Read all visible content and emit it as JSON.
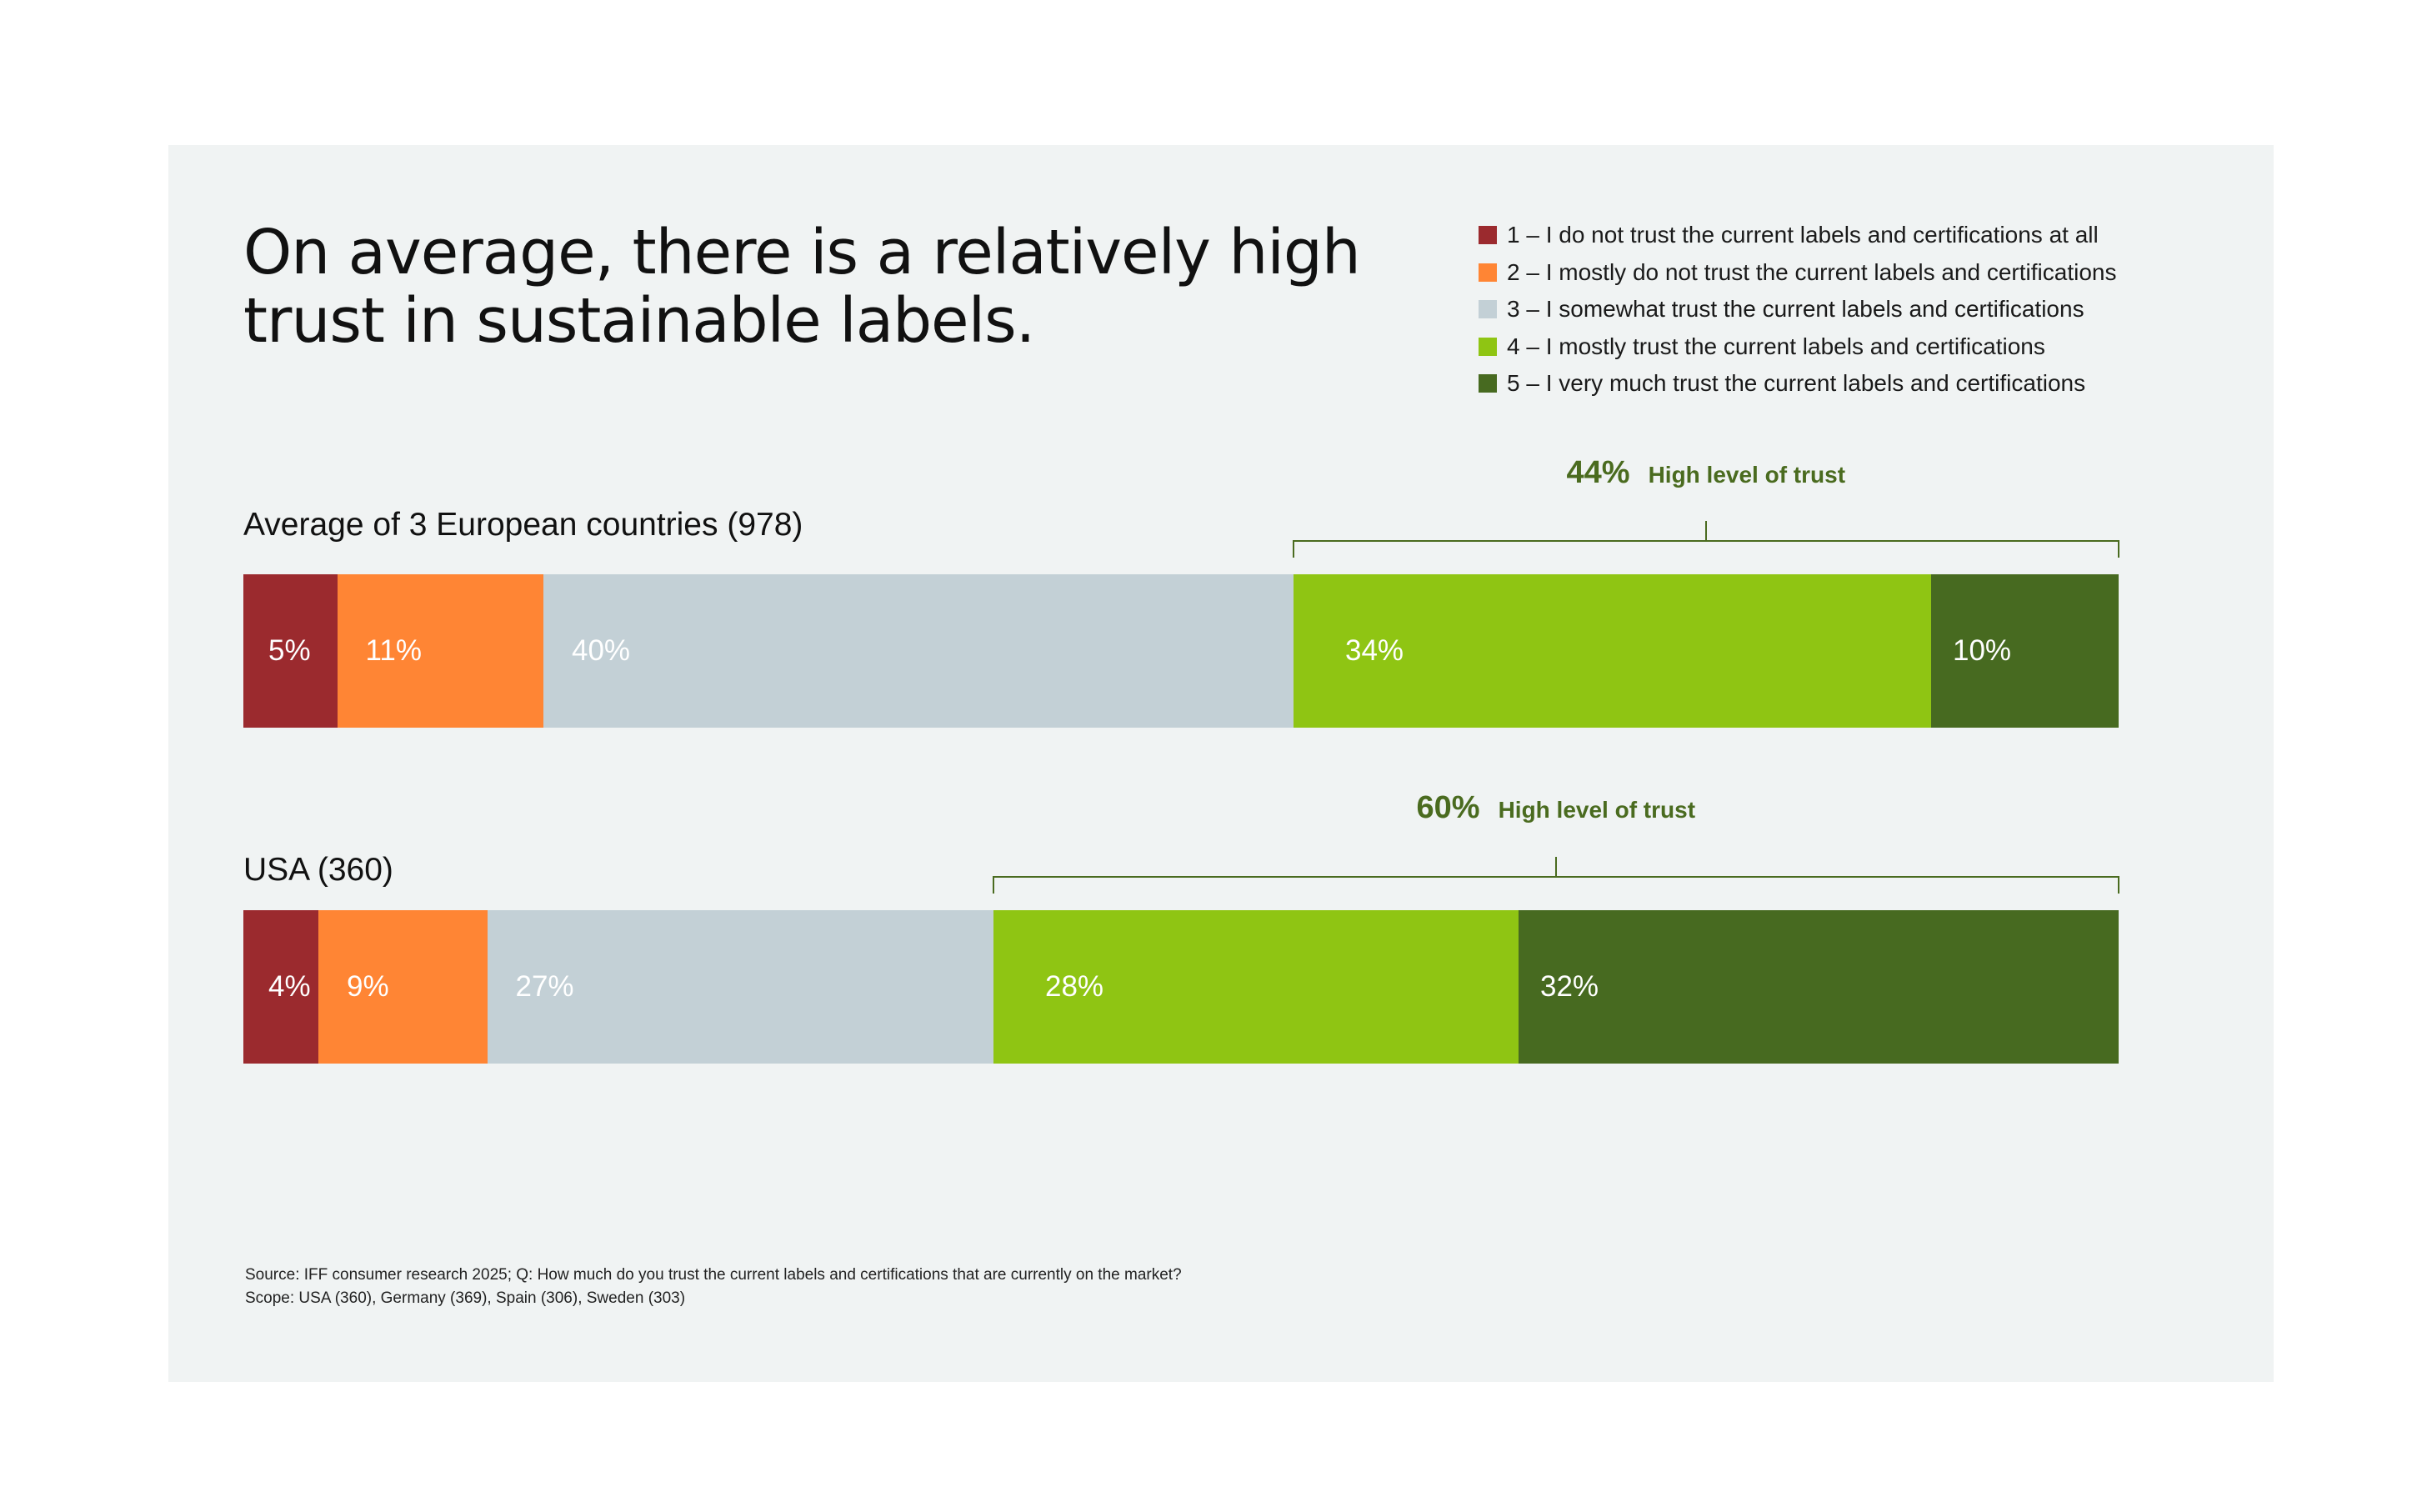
{
  "chart_data": {
    "type": "bar",
    "orientation": "horizontal",
    "stacked": true,
    "title": "On average, there is a relatively high trust in sustainable labels.",
    "categories": [
      "Average of 3 European countries (978)",
      "USA (360)"
    ],
    "series": [
      {
        "name": "1 – I do not trust the current labels and certifications at all",
        "color": "#9b2a2e",
        "values": [
          5,
          4
        ],
        "labels": [
          "5%",
          "4%"
        ]
      },
      {
        "name": "2 – I mostly do not trust the current labels and certifications",
        "color": "#ff8534",
        "values": [
          11,
          9
        ],
        "labels": [
          "11%",
          "9%"
        ]
      },
      {
        "name": "3 – I somewhat trust the current labels and certifications",
        "color": "#c3d0d6",
        "values": [
          40,
          27
        ],
        "labels": [
          "40%",
          "27%"
        ]
      },
      {
        "name": "4 – I mostly trust the current labels and certifications",
        "color": "#8fc513",
        "values": [
          34,
          28
        ],
        "labels": [
          "34%",
          "28%"
        ]
      },
      {
        "name": "5 – I very much trust the current labels and certifications",
        "color": "#476a20",
        "values": [
          10,
          32
        ],
        "labels": [
          "10%",
          "32%"
        ]
      }
    ],
    "annotations": [
      {
        "group": 0,
        "value": "44%",
        "text": "High level of trust"
      },
      {
        "group": 1,
        "value": "60%",
        "text": "High level of trust"
      }
    ],
    "legend": "top-right"
  },
  "source": {
    "line1": "Source: IFF consumer research 2025; Q: How much do you trust the current labels and certifications that are currently on the market?",
    "line2": "Scope: USA (360), Germany (369), Spain (306), Sweden (303)"
  }
}
